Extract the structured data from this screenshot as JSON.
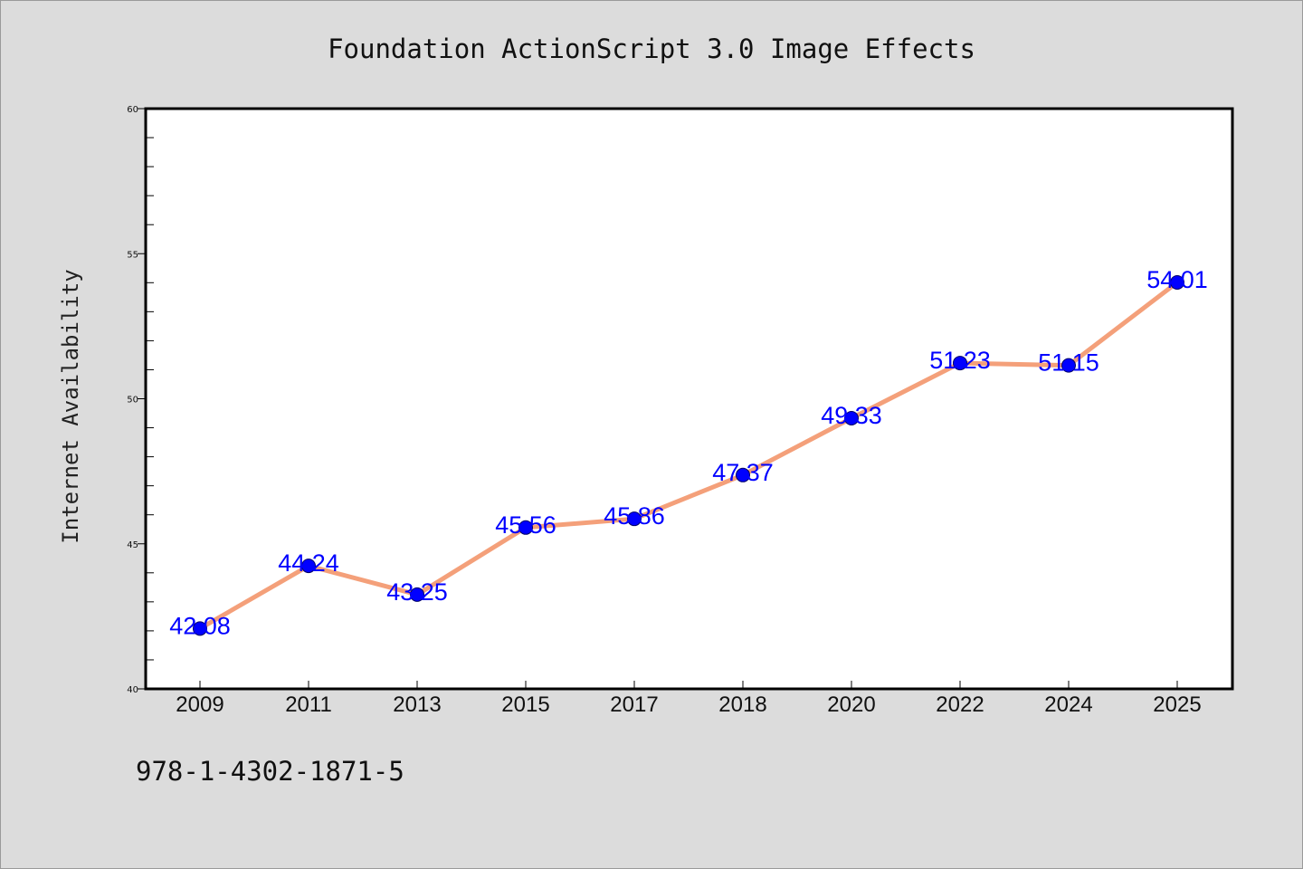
{
  "chart_data": {
    "type": "line",
    "title": "Foundation ActionScript 3.0 Image Effects",
    "xlabel": "",
    "ylabel": "Internet Availability",
    "categories": [
      "2009",
      "2011",
      "2013",
      "2015",
      "2017",
      "2018",
      "2020",
      "2022",
      "2024",
      "2025"
    ],
    "series": [
      {
        "values": [
          42.08,
          44.24,
          43.25,
          45.56,
          45.86,
          47.37,
          49.33,
          51.23,
          51.15,
          54.01
        ],
        "data_labels": [
          "42.08",
          "44.24",
          "43.25",
          "45.56",
          "45.86",
          "47.37",
          "49.33",
          "51.23",
          "51.15",
          "54.01"
        ],
        "line_color": "#f4a07a",
        "marker_color": "#0000ff",
        "label_color": "#0000ff"
      }
    ],
    "ylim": [
      40,
      60
    ],
    "yticks": [
      40,
      45,
      50,
      55,
      60
    ],
    "grid": false,
    "legend": "none"
  },
  "footer": {
    "isbn": "978-1-4302-1871-5"
  },
  "colors": {
    "background": "#dcdcdc",
    "plot_background": "#ffffff"
  }
}
